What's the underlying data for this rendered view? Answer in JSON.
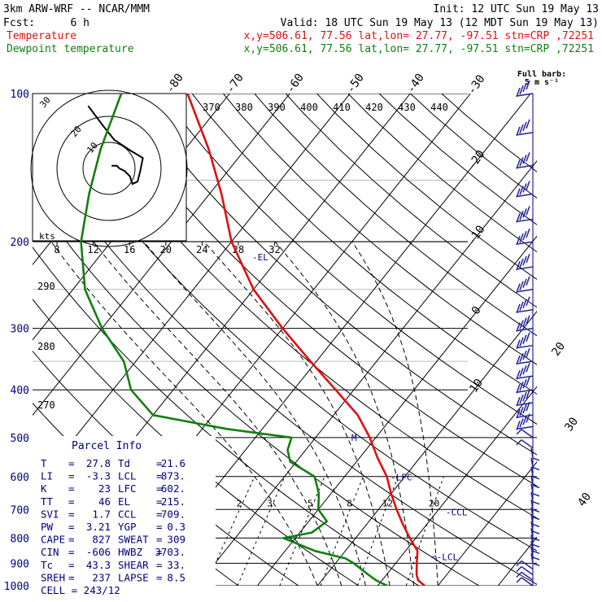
{
  "header": {
    "title": "3km ARW-WRF -- NCAR/MMM",
    "init": "Init: 12 UTC Sun 19 May 13",
    "fcst_label": "Fcst:",
    "fcst_value": "6 h",
    "valid": "Valid: 18 UTC Sun 19 May 13 (12 MDT Sun 19 May 13)",
    "temp_label": "Temperature",
    "dew_label": "Dewpoint temperature",
    "temp_info": "x,y=506.61, 77.56   lat,lon= 27.77, -97.51   stn=CRP ,72251",
    "dew_info": "x,y=506.61, 77.56   lat,lon= 27.77, -97.51   stn=CRP ,72251",
    "barb_note_1": "Full barb:",
    "barb_note_2": "5 m s⁻¹"
  },
  "colors": {
    "temperature": "#e01010",
    "dewpoint": "#108010",
    "text": "#000080",
    "grid": "#000000",
    "barb": "#2020a0"
  },
  "chart_data": {
    "type": "line",
    "title": "",
    "ylabel": "",
    "xlabel": "",
    "y_scale": "log-pressure",
    "ylim": [
      1000,
      100
    ],
    "pressure_ticks": [
      100,
      200,
      300,
      400,
      500,
      600,
      700,
      800,
      900,
      1000
    ],
    "isotherm_labels": [
      -80,
      -70,
      -60,
      -50,
      -40,
      -30,
      -20,
      -10,
      0,
      10,
      20,
      30,
      40
    ],
    "theta_labels_top": [
      370,
      380,
      390,
      400,
      410,
      420,
      430,
      440
    ],
    "theta_labels_left": [
      290,
      280,
      270
    ],
    "mixing_ratio_labels": [
      2,
      3,
      5,
      8,
      12,
      20
    ],
    "series": [
      {
        "name": "Temperature",
        "pressure": [
          100,
          130,
          160,
          200,
          250,
          300,
          350,
          400,
          450,
          500,
          550,
          600,
          650,
          700,
          750,
          800,
          850,
          900,
          950,
          975,
          1000
        ],
        "values": [
          -77,
          -66,
          -58,
          -50,
          -40,
          -30,
          -21,
          -13,
          -6,
          -1,
          3,
          7,
          10,
          13,
          16,
          19,
          22,
          23.5,
          25,
          26,
          27.8
        ]
      },
      {
        "name": "Dewpoint temperature",
        "pressure": [
          100,
          130,
          160,
          200,
          250,
          300,
          350,
          400,
          450,
          480,
          500,
          530,
          560,
          600,
          650,
          700,
          740,
          780,
          800,
          850,
          880,
          900,
          950,
          975,
          1000
        ],
        "values": [
          -88,
          -84,
          -80,
          -75,
          -68,
          -60,
          -52,
          -47,
          -40,
          -26,
          -14,
          -13,
          -11,
          -5,
          -2,
          0,
          3,
          2,
          -2,
          5,
          11,
          13,
          17,
          19,
          21.6
        ]
      }
    ],
    "markers": [
      {
        "label": "-EL",
        "pressure": 215
      },
      {
        "label": "-LFC",
        "pressure": 602
      },
      {
        "label": "-CCL",
        "pressure": 709
      },
      {
        "label": "<-LCL",
        "pressure": 873
      }
    ],
    "hodograph": {
      "units": "kts",
      "ring_labels": [
        "10",
        "20",
        "30"
      ],
      "trace_u": [
        1,
        3,
        4,
        6,
        8,
        9,
        11,
        12,
        13,
        8,
        2,
        -2,
        -5,
        -8
      ],
      "trace_v": [
        1,
        1,
        0,
        -1,
        -3,
        -6,
        -5,
        -1,
        4,
        7,
        11,
        16,
        20,
        24
      ]
    },
    "wind_axis": {
      "ticks": [
        8,
        12,
        16,
        20,
        24,
        28,
        32
      ],
      "labels": [
        "8",
        "12",
        "16",
        "20",
        "24",
        "28",
        "32"
      ]
    },
    "wind_barbs": {
      "pressure": [
        100,
        120,
        140,
        160,
        180,
        200,
        225,
        250,
        275,
        300,
        325,
        350,
        375,
        400,
        425,
        450,
        475,
        500,
        525,
        550,
        575,
        600,
        625,
        650,
        675,
        700,
        725,
        750,
        775,
        800,
        825,
        850,
        875,
        900,
        925,
        950,
        975,
        1000
      ],
      "speed_ms": [
        25,
        25,
        25,
        25,
        25,
        25,
        25,
        25,
        25,
        25,
        25,
        25,
        25,
        25,
        25,
        25,
        25,
        15,
        10,
        8,
        6,
        5,
        5,
        5,
        5,
        5,
        5,
        5,
        5,
        5,
        6,
        7,
        8,
        9,
        10,
        11,
        11,
        11
      ]
    }
  },
  "parcel": {
    "title": "Parcel Info",
    "rows": [
      {
        "l1": "T",
        "v1": "27.8",
        "l2": "Td",
        "v2": "21.6"
      },
      {
        "l1": "LI",
        "v1": "-3.3",
        "l2": "LCL",
        "v2": "873."
      },
      {
        "l1": "K",
        "v1": "23",
        "l2": "LFC",
        "v2": "602."
      },
      {
        "l1": "TT",
        "v1": "46",
        "l2": "EL",
        "v2": "215."
      },
      {
        "l1": "SVI",
        "v1": "1.7",
        "l2": "CCL",
        "v2": "709."
      },
      {
        "l1": "PW",
        "v1": "3.21",
        "l2": "YGP",
        "v2": "0.3"
      },
      {
        "l1": "CAPE",
        "v1": "827",
        "l2": "SWEAT",
        "v2": "309"
      },
      {
        "l1": "CIN",
        "v1": "-606",
        "l2": "HWBZ",
        "v2": "3703."
      },
      {
        "l1": "Tc",
        "v1": "43.3",
        "l2": "SHEAR",
        "v2": "33."
      },
      {
        "l1": "SREH",
        "v1": "237",
        "l2": "LAPSE",
        "v2": "8.5"
      }
    ],
    "cell": "CELL = 243/12"
  }
}
